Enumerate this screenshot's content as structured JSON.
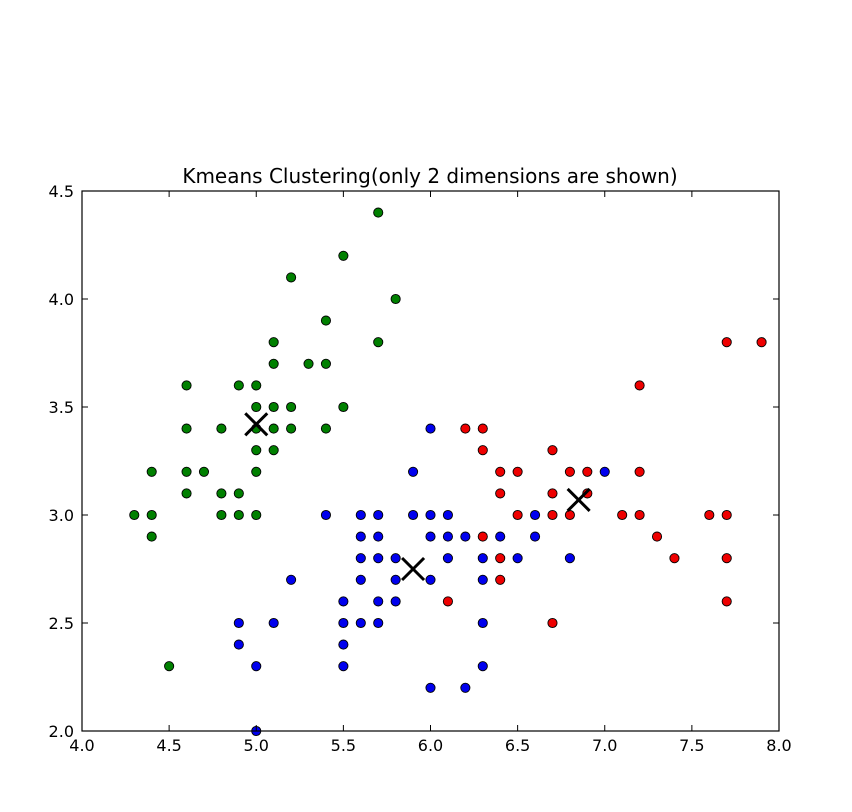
{
  "chart_data": {
    "type": "scatter",
    "title": "Kmeans Clustering(only 2 dimensions are shown)",
    "xlabel": "",
    "ylabel": "",
    "xlim": [
      4.0,
      8.0
    ],
    "ylim": [
      2.0,
      4.5
    ],
    "xticks": [
      "4.0",
      "4.5",
      "5.0",
      "5.5",
      "6.0",
      "6.5",
      "7.0",
      "7.5",
      "8.0"
    ],
    "yticks": [
      "2.0",
      "2.5",
      "3.0",
      "3.5",
      "4.0",
      "4.5"
    ],
    "grid": false,
    "series": [
      {
        "color": "#008000",
        "points": [
          [
            4.3,
            3.0
          ],
          [
            4.4,
            3.0
          ],
          [
            4.4,
            3.2
          ],
          [
            4.4,
            2.9
          ],
          [
            4.5,
            2.3
          ],
          [
            4.6,
            3.6
          ],
          [
            4.6,
            3.4
          ],
          [
            4.6,
            3.2
          ],
          [
            4.6,
            3.1
          ],
          [
            4.7,
            3.2
          ],
          [
            4.8,
            3.4
          ],
          [
            4.8,
            3.1
          ],
          [
            4.8,
            3.0
          ],
          [
            4.9,
            3.6
          ],
          [
            4.9,
            3.1
          ],
          [
            4.9,
            3.0
          ],
          [
            5.0,
            3.6
          ],
          [
            5.0,
            3.5
          ],
          [
            5.0,
            3.4
          ],
          [
            5.0,
            3.3
          ],
          [
            5.0,
            3.2
          ],
          [
            5.0,
            3.0
          ],
          [
            5.1,
            3.8
          ],
          [
            5.1,
            3.7
          ],
          [
            5.1,
            3.5
          ],
          [
            5.1,
            3.4
          ],
          [
            5.1,
            3.3
          ],
          [
            5.2,
            4.1
          ],
          [
            5.2,
            3.5
          ],
          [
            5.2,
            3.4
          ],
          [
            5.3,
            3.7
          ],
          [
            5.4,
            3.9
          ],
          [
            5.4,
            3.7
          ],
          [
            5.4,
            3.4
          ],
          [
            5.5,
            4.2
          ],
          [
            5.5,
            3.5
          ],
          [
            5.7,
            4.4
          ],
          [
            5.7,
            3.8
          ],
          [
            5.8,
            4.0
          ]
        ]
      },
      {
        "color": "#0000ee",
        "points": [
          [
            4.9,
            2.5
          ],
          [
            4.9,
            2.4
          ],
          [
            5.0,
            2.3
          ],
          [
            5.0,
            2.0
          ],
          [
            5.1,
            2.5
          ],
          [
            5.2,
            2.7
          ],
          [
            5.4,
            3.0
          ],
          [
            5.5,
            2.6
          ],
          [
            5.5,
            2.5
          ],
          [
            5.5,
            2.4
          ],
          [
            5.5,
            2.3
          ],
          [
            5.6,
            3.0
          ],
          [
            5.6,
            2.9
          ],
          [
            5.6,
            2.8
          ],
          [
            5.6,
            2.7
          ],
          [
            5.6,
            2.5
          ],
          [
            5.7,
            3.0
          ],
          [
            5.7,
            2.9
          ],
          [
            5.7,
            2.8
          ],
          [
            5.7,
            2.6
          ],
          [
            5.7,
            2.5
          ],
          [
            5.8,
            2.8
          ],
          [
            5.8,
            2.7
          ],
          [
            5.8,
            2.6
          ],
          [
            5.9,
            3.2
          ],
          [
            5.9,
            3.0
          ],
          [
            6.0,
            3.4
          ],
          [
            6.0,
            3.0
          ],
          [
            6.0,
            2.9
          ],
          [
            6.0,
            2.7
          ],
          [
            6.0,
            2.2
          ],
          [
            6.1,
            3.0
          ],
          [
            6.1,
            2.9
          ],
          [
            6.1,
            2.8
          ],
          [
            6.2,
            2.9
          ],
          [
            6.2,
            2.2
          ],
          [
            6.3,
            2.8
          ],
          [
            6.3,
            2.7
          ],
          [
            6.3,
            2.5
          ],
          [
            6.3,
            2.3
          ],
          [
            6.4,
            2.9
          ],
          [
            6.5,
            2.8
          ],
          [
            6.6,
            3.0
          ],
          [
            6.6,
            2.9
          ],
          [
            6.8,
            2.8
          ],
          [
            7.0,
            3.2
          ]
        ]
      },
      {
        "color": "#ee0000",
        "points": [
          [
            6.1,
            2.6
          ],
          [
            6.2,
            3.4
          ],
          [
            6.3,
            3.4
          ],
          [
            6.3,
            3.3
          ],
          [
            6.3,
            2.9
          ],
          [
            6.4,
            3.2
          ],
          [
            6.4,
            3.1
          ],
          [
            6.4,
            2.8
          ],
          [
            6.4,
            2.7
          ],
          [
            6.5,
            3.2
          ],
          [
            6.5,
            3.0
          ],
          [
            6.7,
            3.3
          ],
          [
            6.7,
            3.1
          ],
          [
            6.7,
            3.0
          ],
          [
            6.7,
            2.5
          ],
          [
            6.8,
            3.2
          ],
          [
            6.8,
            3.0
          ],
          [
            6.9,
            3.2
          ],
          [
            6.9,
            3.1
          ],
          [
            7.1,
            3.0
          ],
          [
            7.2,
            3.6
          ],
          [
            7.2,
            3.2
          ],
          [
            7.2,
            3.0
          ],
          [
            7.3,
            2.9
          ],
          [
            7.4,
            2.8
          ],
          [
            7.6,
            3.0
          ],
          [
            7.7,
            3.8
          ],
          [
            7.7,
            3.0
          ],
          [
            7.7,
            2.8
          ],
          [
            7.7,
            2.6
          ],
          [
            7.9,
            3.8
          ]
        ]
      }
    ],
    "centroids": [
      [
        5.0,
        3.42
      ],
      [
        5.9,
        2.75
      ],
      [
        6.85,
        3.07
      ]
    ]
  }
}
